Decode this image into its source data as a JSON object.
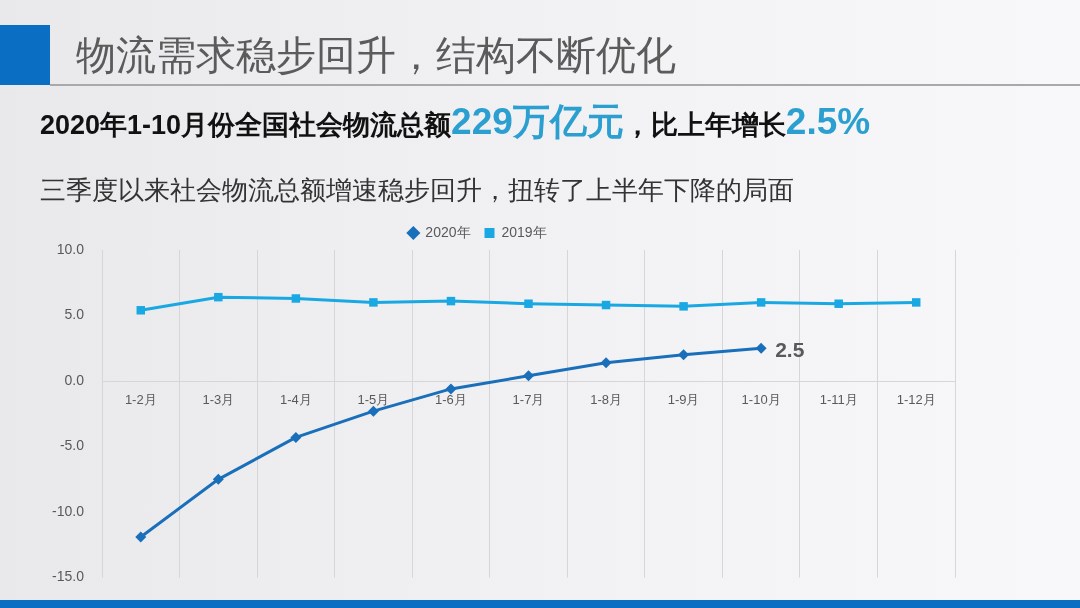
{
  "chart_data": {
    "type": "line",
    "title": "物流需求稳步回升，结构不断优化",
    "subtitle": "2020年1-10月份全国社会物流总额229万亿元，比上年增长2.5%",
    "annotations": [
      "三季度以来社会物流总额增速稳步回升，扭转了上半年下降的局面"
    ],
    "categories": [
      "1-2月",
      "1-3月",
      "1-4月",
      "1-5月",
      "1-6月",
      "1-7月",
      "1-8月",
      "1-9月",
      "1-10月",
      "1-11月",
      "1-12月"
    ],
    "series": [
      {
        "name": "2020年",
        "color": "#1a6fba",
        "marker": "diamond",
        "values": [
          -11.9,
          -7.5,
          -4.3,
          -2.3,
          -0.6,
          0.4,
          1.4,
          2.0,
          2.5,
          null,
          null
        ],
        "value_labels": [
          null,
          null,
          null,
          null,
          null,
          null,
          null,
          null,
          "2.5",
          null,
          null
        ]
      },
      {
        "name": "2019年",
        "color": "#1aa8e3",
        "marker": "square",
        "values": [
          5.4,
          6.4,
          6.3,
          6.0,
          6.1,
          5.9,
          5.8,
          5.7,
          6.0,
          5.9,
          6.0
        ]
      }
    ],
    "ylim": [
      -15,
      10
    ],
    "yticks": [
      {
        "value": -15,
        "label": "-15.0"
      },
      {
        "value": -10,
        "label": "-10.0"
      },
      {
        "value": -5,
        "label": "-5.0"
      },
      {
        "value": 0,
        "label": "0.0"
      },
      {
        "value": 5,
        "label": "5.0"
      },
      {
        "value": 10,
        "label": "10.0"
      }
    ],
    "grid": "x",
    "legend": "top"
  }
}
